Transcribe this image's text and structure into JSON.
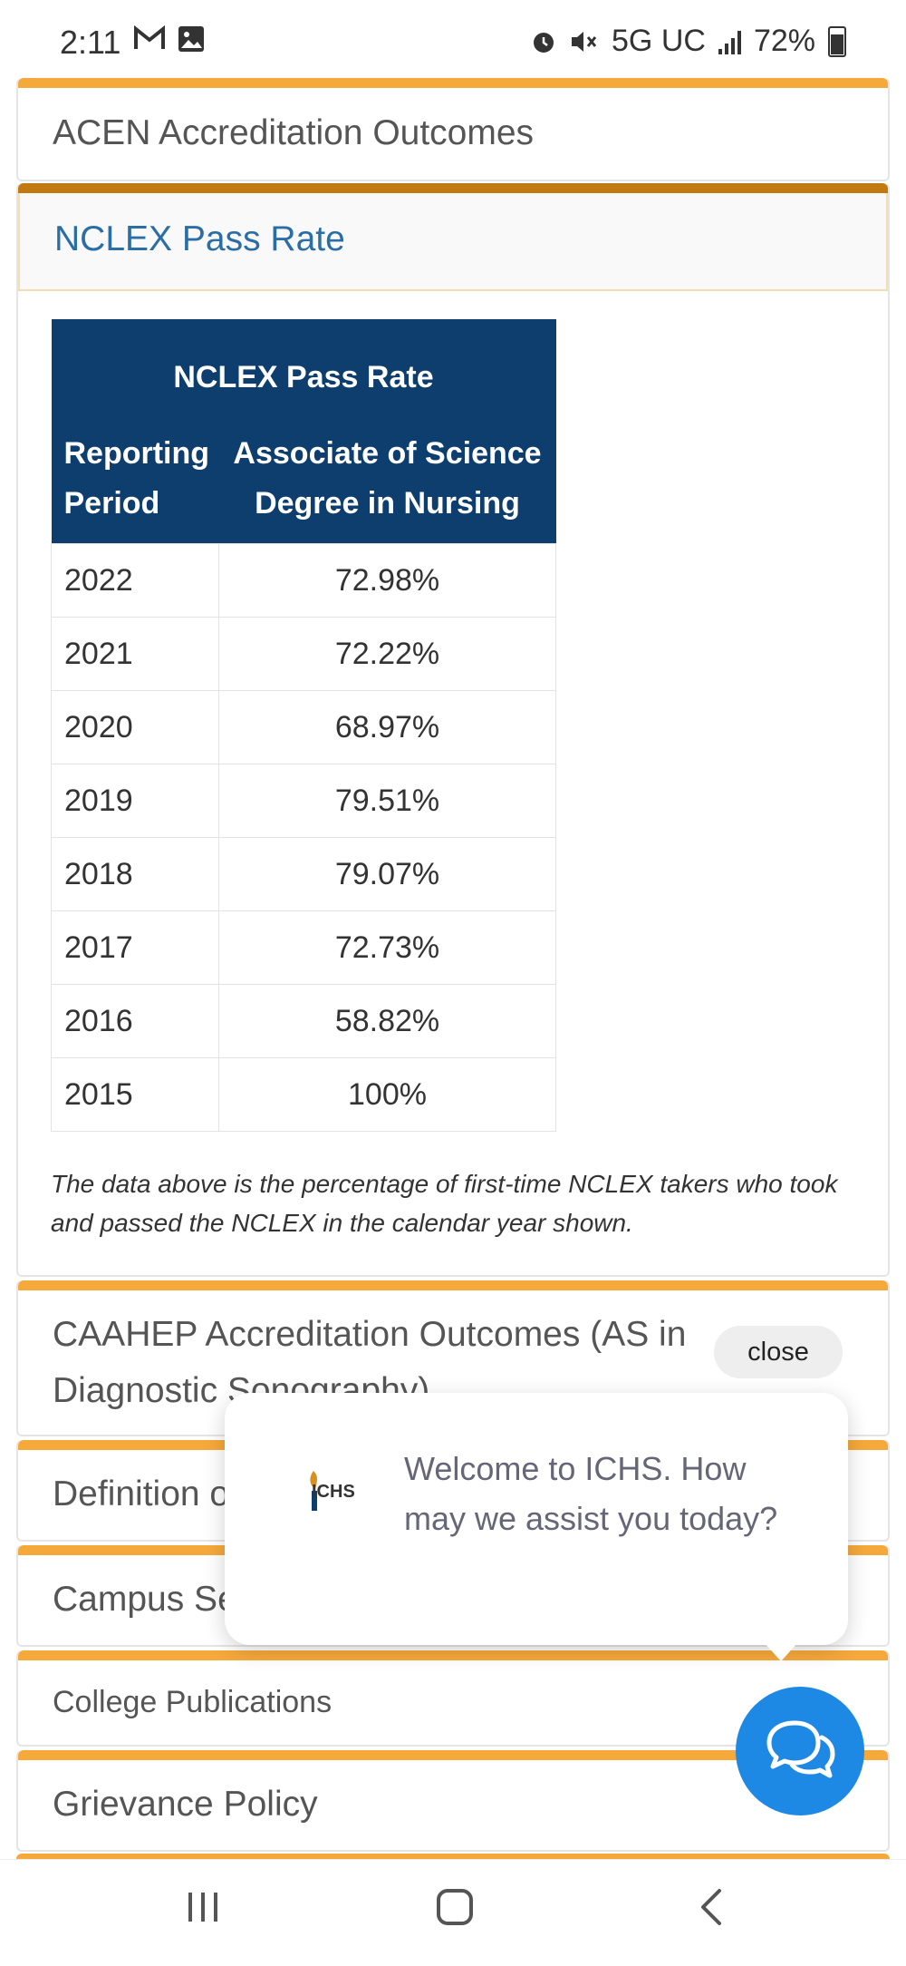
{
  "status_bar": {
    "time": "2:11",
    "network": "5G UC",
    "battery": "72%"
  },
  "accordion": {
    "acen": "ACEN Accreditation Outcomes",
    "nclex": "NCLEX Pass Rate",
    "caahep": "CAAHEP Accreditation Outcomes (AS in Diagnostic Sonography)",
    "definition": "Definition of",
    "campus": "Campus Se",
    "publications": "College Publications",
    "grievance": "Grievance Policy"
  },
  "table": {
    "caption": "NCLEX Pass Rate",
    "col1": "Reporting Period",
    "col2": "Associate of Science Degree in Nursing",
    "rows": [
      {
        "year": "2022",
        "rate": "72.98%"
      },
      {
        "year": "2021",
        "rate": "72.22%"
      },
      {
        "year": "2020",
        "rate": "68.97%"
      },
      {
        "year": "2019",
        "rate": "79.51%"
      },
      {
        "year": "2018",
        "rate": "79.07%"
      },
      {
        "year": "2017",
        "rate": "72.73%"
      },
      {
        "year": "2016",
        "rate": "58.82%"
      },
      {
        "year": "2015",
        "rate": "100%"
      }
    ]
  },
  "note": "The data above is the percentage of first-time NCLEX takers who took and passed the NCLEX in the calendar year shown.",
  "chat": {
    "close_label": "close",
    "logo_text": "ICHS",
    "message": "Welcome to ICHS. How may we assist you today?"
  },
  "colors": {
    "accent": "#f6a93b",
    "table_header": "#0e3e6e",
    "chat_blue": "#1e88e5"
  }
}
